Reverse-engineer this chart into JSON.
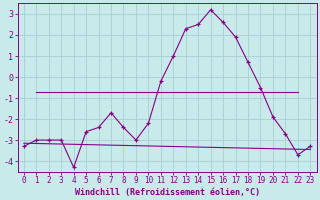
{
  "xlabel": "Windchill (Refroidissement éolien,°C)",
  "x": [
    0,
    1,
    2,
    3,
    4,
    5,
    6,
    7,
    8,
    9,
    10,
    11,
    12,
    13,
    14,
    15,
    16,
    17,
    18,
    19,
    20,
    21,
    22,
    23
  ],
  "line1": [
    -3.3,
    -3.0,
    -3.0,
    -3.0,
    -4.3,
    -2.6,
    -2.4,
    -1.7,
    -2.4,
    -3.0,
    -2.2,
    -0.2,
    1.0,
    2.3,
    2.5,
    3.2,
    2.6,
    1.9,
    0.7,
    -0.5,
    -1.9,
    -2.7,
    -3.7,
    -3.3
  ],
  "line2_x": [
    1,
    22
  ],
  "line2_y": [
    -0.7,
    -0.7
  ],
  "line3_x": [
    0,
    23
  ],
  "line3_y": [
    -3.15,
    -3.45
  ],
  "bg_color": "#c8eaea",
  "grid_color": "#a8d0d0",
  "line_color": "#880088",
  "ylim": [
    -4.5,
    3.5
  ],
  "xlim": [
    -0.5,
    23.5
  ],
  "yticks": [
    -4,
    -3,
    -2,
    -1,
    0,
    1,
    2,
    3
  ],
  "xticks": [
    0,
    1,
    2,
    3,
    4,
    5,
    6,
    7,
    8,
    9,
    10,
    11,
    12,
    13,
    14,
    15,
    16,
    17,
    18,
    19,
    20,
    21,
    22,
    23
  ],
  "tick_fontsize": 5.5,
  "xlabel_fontsize": 6.0
}
